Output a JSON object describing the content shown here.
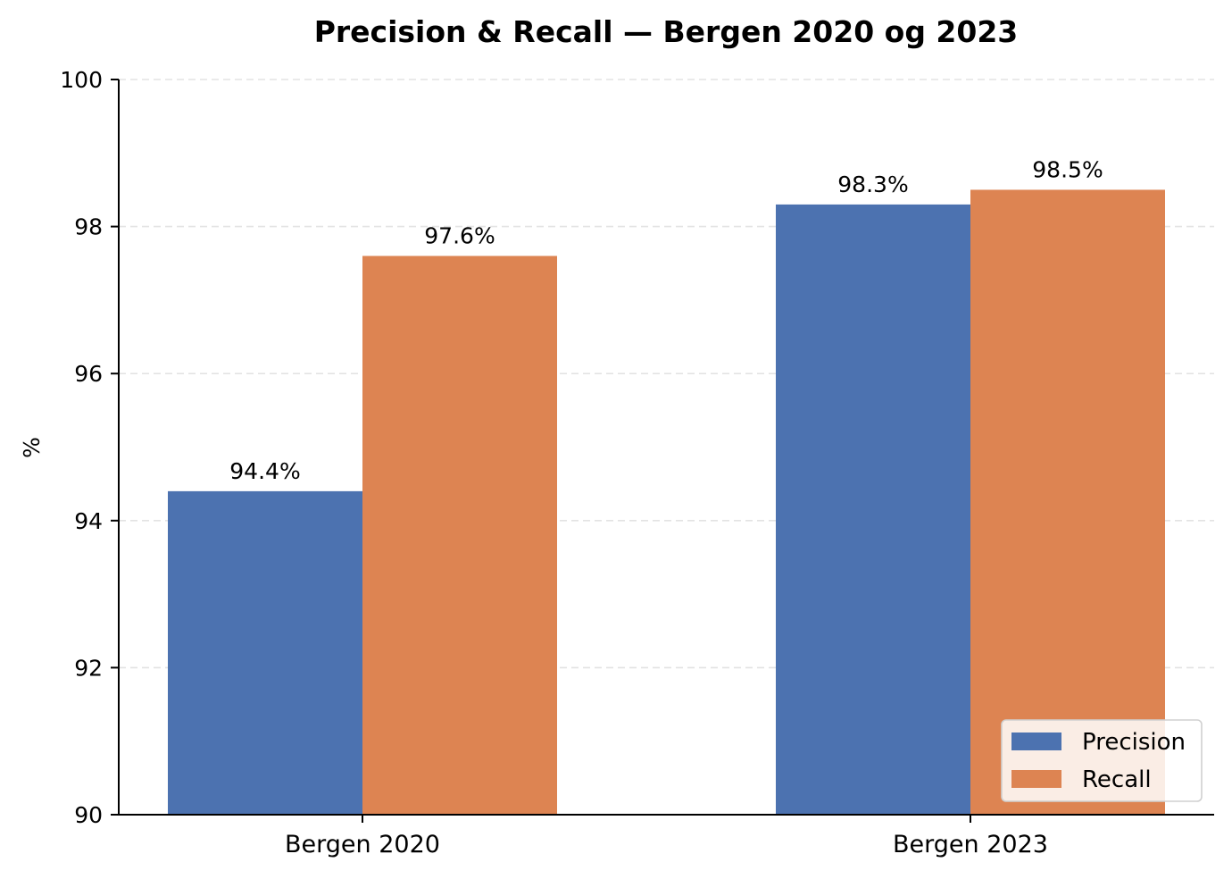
{
  "chart_data": {
    "type": "bar",
    "title": "Precision & Recall — Bergen 2020 og 2023",
    "xlabel": "",
    "ylabel": "%",
    "categories": [
      "Bergen 2020",
      "Bergen 2023"
    ],
    "series": [
      {
        "name": "Precision",
        "values": [
          94.4,
          98.3
        ],
        "labels": [
          "94.4%",
          "98.3%"
        ],
        "color": "#4c72b0"
      },
      {
        "name": "Recall",
        "values": [
          97.6,
          98.5
        ],
        "labels": [
          "97.6%",
          "98.5%"
        ],
        "color": "#dd8452"
      }
    ],
    "ylim": [
      90,
      100
    ],
    "yticks": [
      "90",
      "92",
      "94",
      "96",
      "98",
      "100"
    ],
    "ytick_values": [
      90,
      92,
      94,
      96,
      98,
      100
    ],
    "grid": true,
    "legend_position": "lower-right"
  }
}
